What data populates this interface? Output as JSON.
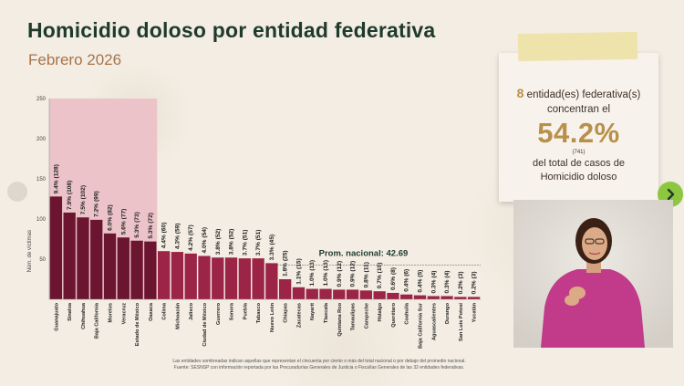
{
  "header": {
    "title": "Homicidio doloso por entidad federativa",
    "subtitle": "Febrero 2026"
  },
  "summary_card": {
    "count": "8",
    "line1_rest": "entidad(es) federativa(s)",
    "line2": "concentran el",
    "percent": "54.2%",
    "cases": "(741)",
    "line3": "del total de casos de",
    "line4": "Homicidio doloso"
  },
  "footnote": {
    "line1": "Las entidades sombreadas indican aquellas que representan el cincuenta por ciento o más del total nacional o por debajo del promedio nacional.",
    "line2": "Fuente: SESNSP con información reportada por las Procuradurías Generales de Justicia o Fiscalías Generales de las 32 entidades federativas."
  },
  "colors": {
    "title": "#1f3a2d",
    "subtitle": "#a8734a",
    "highlight_bar": "#6b1530",
    "normal_bar": "#9b2447",
    "highlight_band": "#ebc3c9",
    "average_line": "#7a7060",
    "average_text": "#1f3a2d",
    "accent_gold": "#b8904a",
    "nav_green": "#8dc63f"
  },
  "chart_data": {
    "type": "bar",
    "ylabel": "Núm. de víctimas",
    "ylim": [
      0,
      250
    ],
    "yticks": [
      50,
      100,
      150,
      200,
      250
    ],
    "highlighted_count": 8,
    "average": {
      "value": 42.69,
      "label": "Prom. nacional: 42.69"
    },
    "categories": [
      "Guanajuato",
      "Sinaloa",
      "Chihuahua",
      "Baja California",
      "Morelos",
      "Veracruz",
      "Estado de México",
      "Oaxaca",
      "Colima",
      "Michoacán",
      "Jalisco",
      "Ciudad de México",
      "Guerrero",
      "Sonora",
      "Puebla",
      "Tabasco",
      "Nuevo León",
      "Chiapas",
      "Zacatecas",
      "Nayarit",
      "Tlaxcala",
      "Quintana Roo",
      "Tamaulipas",
      "Campeche",
      "Hidalgo",
      "Querétaro",
      "Coahuila",
      "Baja California Sur",
      "Aguascalientes",
      "Durango",
      "San Luis Potosí",
      "Yucatán"
    ],
    "values": [
      128,
      108,
      102,
      99,
      82,
      77,
      73,
      72,
      60,
      59,
      57,
      54,
      52,
      52,
      51,
      51,
      45,
      25,
      15,
      13,
      13,
      12,
      12,
      11,
      10,
      8,
      6,
      5,
      4,
      4,
      3,
      3
    ],
    "labels": [
      "9.4% (128)",
      "7.9% (108)",
      "7.5% (102)",
      "7.2% (99)",
      "6.0% (82)",
      "5.6% (77)",
      "5.3% (73)",
      "5.3% (72)",
      "4.4% (60)",
      "4.3% (59)",
      "4.2% (57)",
      "4.0% (54)",
      "3.8% (52)",
      "3.8% (52)",
      "3.7% (51)",
      "3.7% (51)",
      "3.3% (45)",
      "1.8% (25)",
      "1.1% (15)",
      "1.0% (13)",
      "1.0% (13)",
      "0.9% (12)",
      "0.9% (12)",
      "0.8% (11)",
      "0.7% (10)",
      "0.6% (8)",
      "0.4% (6)",
      "0.4% (5)",
      "0.3% (4)",
      "0.3% (4)",
      "0.2% (3)",
      "0.2% (3)"
    ]
  }
}
